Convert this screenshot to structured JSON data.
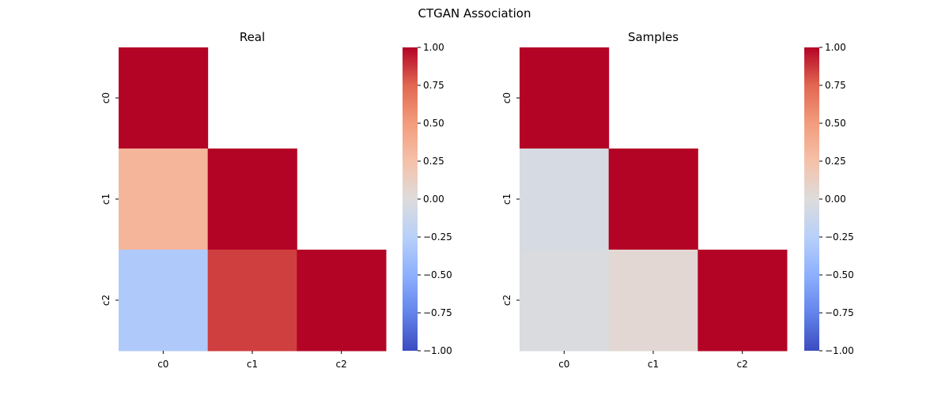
{
  "figure": {
    "title": "CTGAN Association"
  },
  "chart_data": [
    {
      "type": "heatmap",
      "title": "Real",
      "x_categories": [
        "c0",
        "c1",
        "c2"
      ],
      "y_categories": [
        "c0",
        "c1",
        "c2"
      ],
      "mask": "upper triangle",
      "matrix": [
        [
          1.0,
          null,
          null
        ],
        [
          0.33,
          1.0,
          null
        ],
        [
          -0.3,
          0.85,
          1.0
        ]
      ],
      "colormap": "coolwarm",
      "vmin": -1.0,
      "vmax": 1.0,
      "colorbar_ticks": [
        "−1.00",
        "−0.75",
        "−0.50",
        "−0.25",
        "0.00",
        "0.25",
        "0.50",
        "0.75",
        "1.00"
      ]
    },
    {
      "type": "heatmap",
      "title": "Samples",
      "x_categories": [
        "c0",
        "c1",
        "c2"
      ],
      "y_categories": [
        "c0",
        "c1",
        "c2"
      ],
      "mask": "upper triangle",
      "matrix": [
        [
          1.0,
          null,
          null
        ],
        [
          -0.05,
          1.0,
          null
        ],
        [
          -0.02,
          0.05,
          1.0
        ]
      ],
      "colormap": "coolwarm",
      "vmin": -1.0,
      "vmax": 1.0,
      "colorbar_ticks": [
        "−1.00",
        "−0.75",
        "−0.50",
        "−0.25",
        "0.00",
        "0.25",
        "0.50",
        "0.75",
        "1.00"
      ]
    }
  ]
}
